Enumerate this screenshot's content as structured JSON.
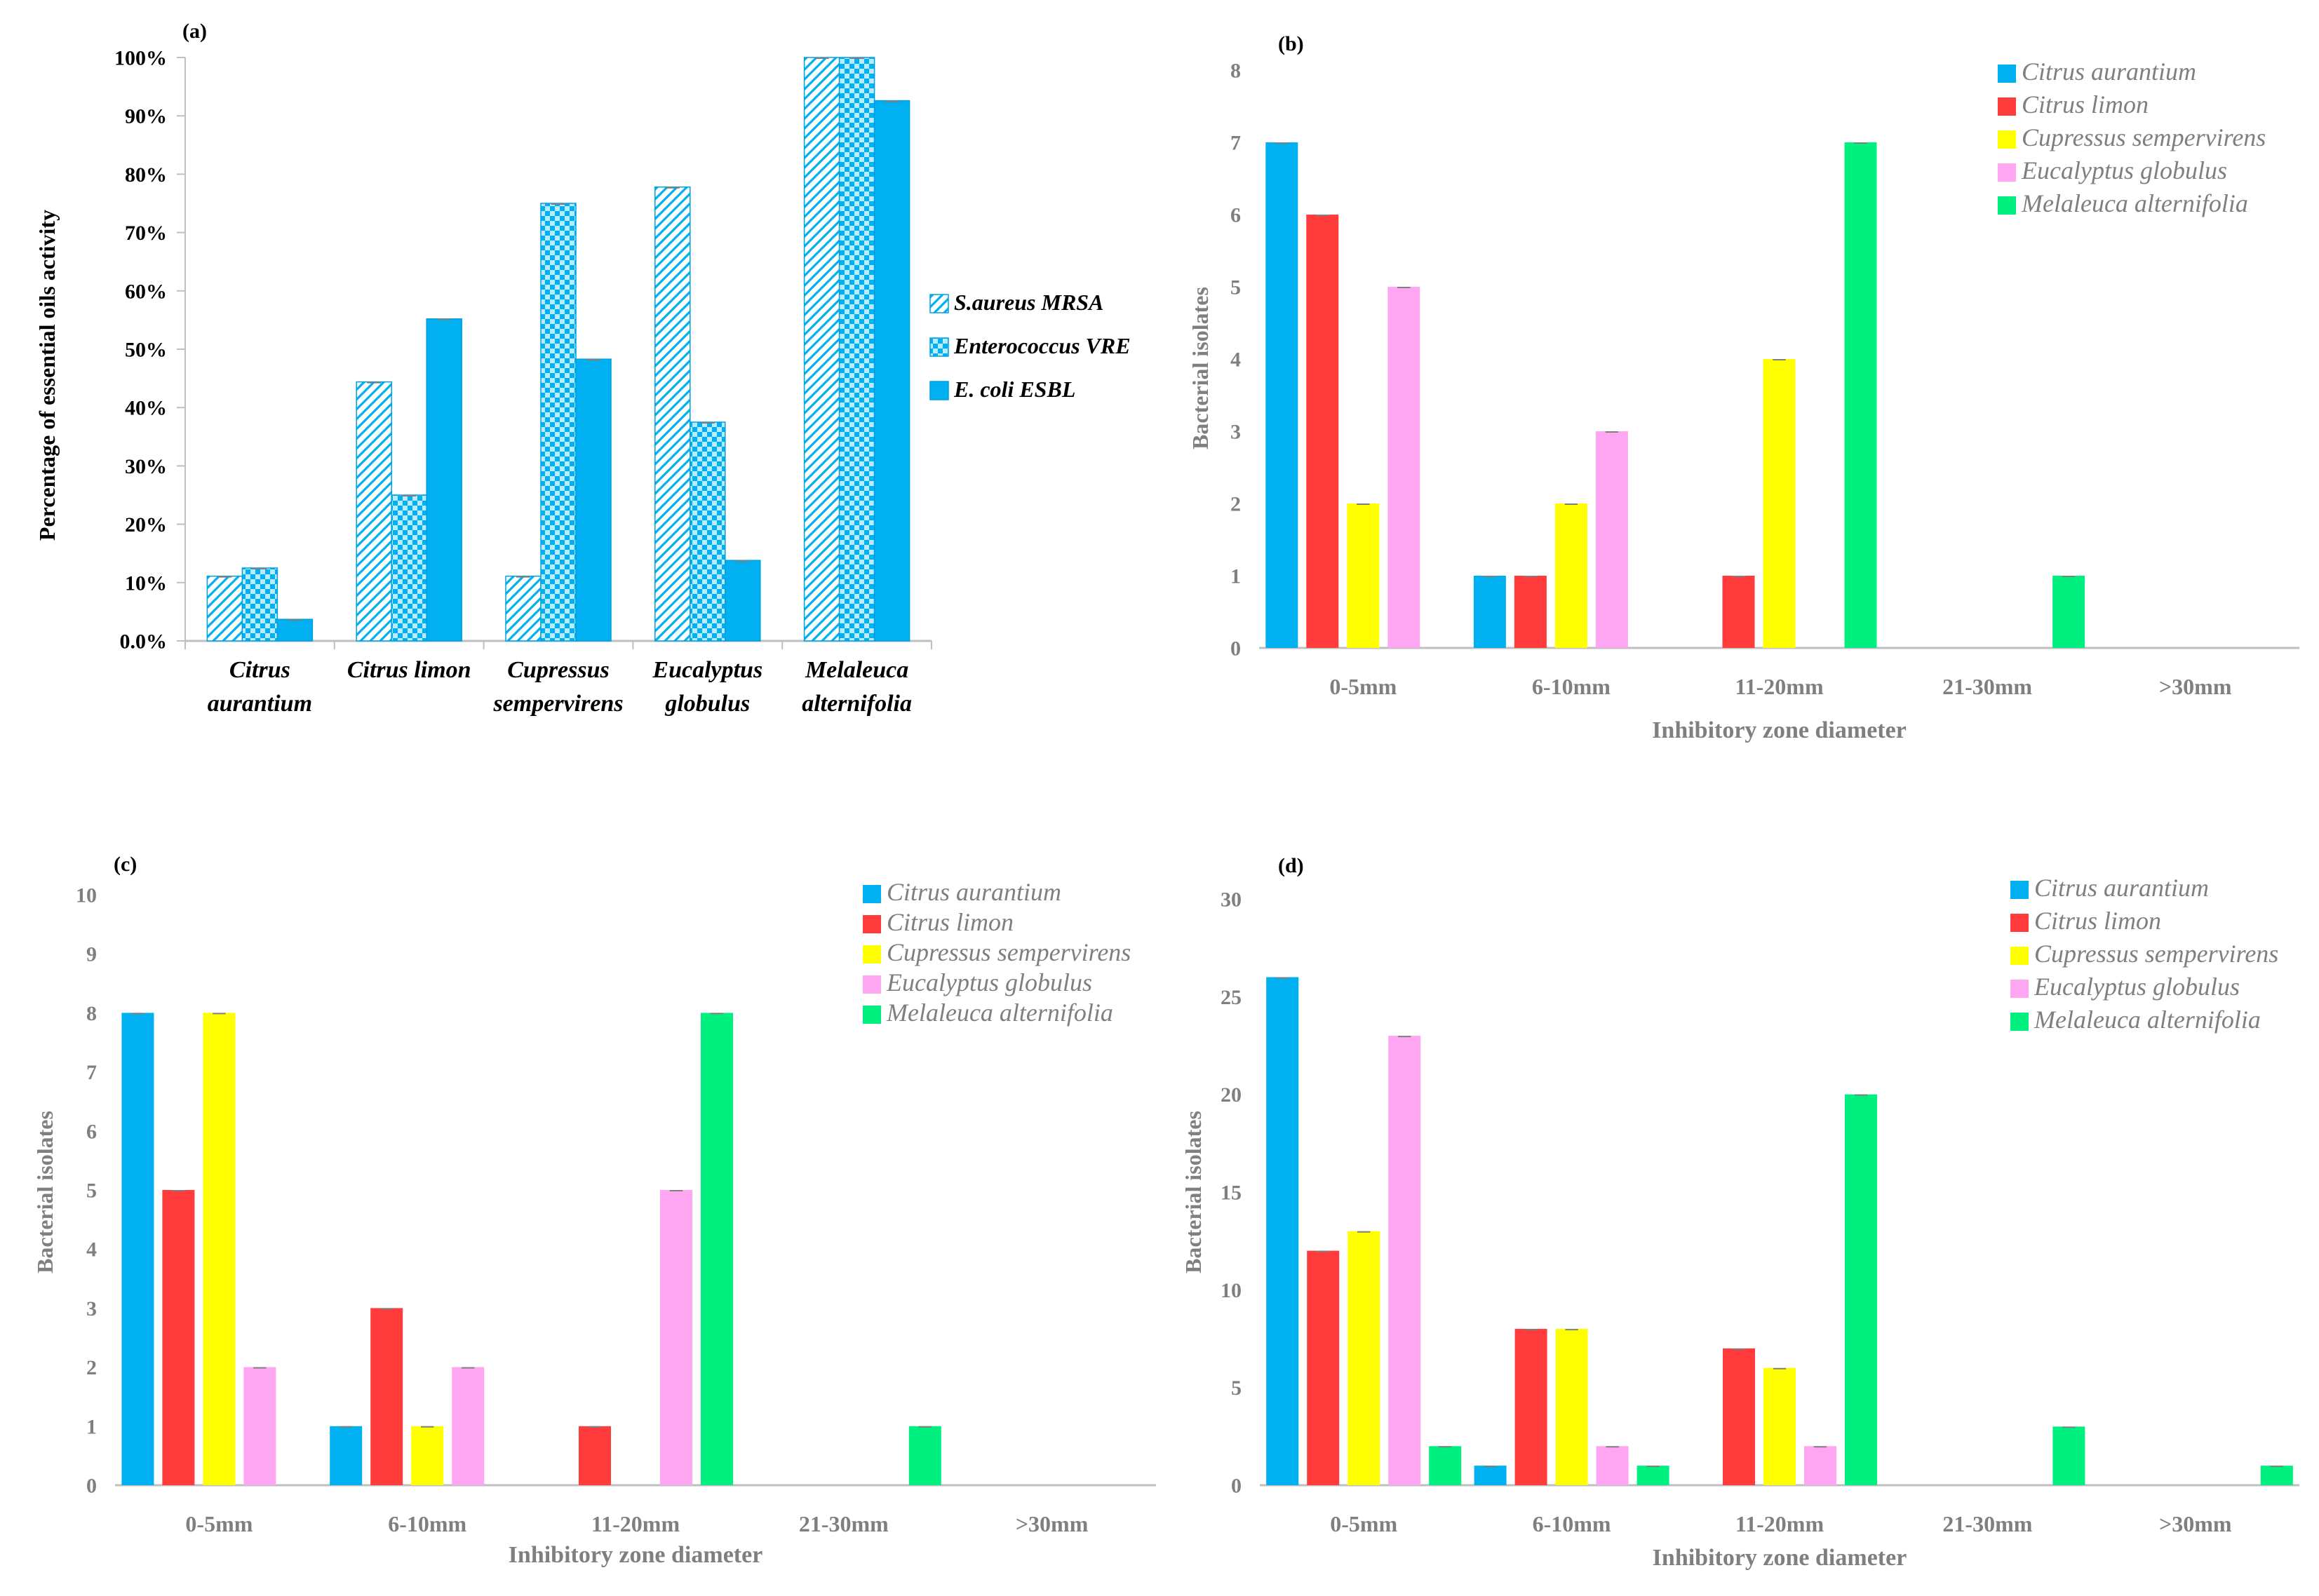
{
  "chart_data": [
    {
      "id": "a",
      "type": "bar",
      "panel_label": "(a)",
      "title": "",
      "xlabel": "",
      "ylabel": "Percentage of essential oils  activity",
      "ylim": [
        0,
        100
      ],
      "yticks": [
        "0.0%",
        "10%",
        "20%",
        "30%",
        "40%",
        "50%",
        "60%",
        "70%",
        "80%",
        "90%",
        "100%"
      ],
      "grid": false,
      "legend_position": "right",
      "categories": [
        [
          "Citrus",
          "aurantium"
        ],
        [
          "Citrus limon"
        ],
        [
          "Cupressus",
          "sempervirens"
        ],
        [
          "Eucalyptus",
          "globulus"
        ],
        [
          "Melaleuca",
          "alternifolia"
        ]
      ],
      "series": [
        {
          "name": "S.aureus MRSA",
          "color": "#00b0f0",
          "fill": "diagonal-hatch",
          "values": [
            11.1,
            44.4,
            11.1,
            77.8,
            100
          ]
        },
        {
          "name": "Enterococcus VRE",
          "color": "#00b0f0",
          "fill": "check-pattern",
          "values": [
            12.5,
            25,
            75,
            37.5,
            100
          ]
        },
        {
          "name": "E. coli ESBL",
          "color": "#00b0f0",
          "fill": "solid",
          "values": [
            3.7,
            55.2,
            48.3,
            13.8,
            92.6
          ]
        }
      ]
    },
    {
      "id": "b",
      "type": "bar",
      "panel_label": "(b)",
      "title": "",
      "xlabel": "Inhibitory  zone diameter",
      "ylabel": "Bacterial isolates",
      "ylim": [
        0,
        8
      ],
      "yticks": [
        "0",
        "1",
        "2",
        "3",
        "4",
        "5",
        "6",
        "7",
        "8"
      ],
      "grid": false,
      "legend_position": "top-right",
      "categories": [
        "0-5mm",
        "6-10mm",
        "11-20mm",
        "21-30mm",
        ">30mm"
      ],
      "series": [
        {
          "name": "Citrus aurantium",
          "color": "#00b0f0",
          "values": [
            7,
            1,
            0,
            0,
            0
          ]
        },
        {
          "name": "Citrus limon",
          "color": "#ff3b3b",
          "values": [
            6,
            1,
            1,
            0,
            0
          ]
        },
        {
          "name": "Cupressus sempervirens",
          "color": "#ffff00",
          "values": [
            2,
            2,
            4,
            0,
            0
          ]
        },
        {
          "name": "Eucalyptus globulus",
          "color": "#ffa6f2",
          "values": [
            5,
            3,
            0,
            0,
            0
          ]
        },
        {
          "name": "Melaleuca alternifolia",
          "color": "#00f080",
          "values": [
            0,
            0,
            7,
            1,
            0
          ]
        }
      ]
    },
    {
      "id": "c",
      "type": "bar",
      "panel_label": "(c)",
      "title": "",
      "xlabel": "Inhibitory  zone diameter",
      "ylabel": "Bacterial isolates",
      "ylim": [
        0,
        10
      ],
      "yticks": [
        "0",
        "1",
        "2",
        "3",
        "4",
        "5",
        "6",
        "7",
        "8",
        "9",
        "10"
      ],
      "grid": false,
      "legend_position": "top-right",
      "categories": [
        "0-5mm",
        "6-10mm",
        "11-20mm",
        "21-30mm",
        ">30mm"
      ],
      "series": [
        {
          "name": "Citrus aurantium",
          "color": "#00b0f0",
          "values": [
            8,
            1,
            0,
            0,
            0
          ]
        },
        {
          "name": "Citrus limon",
          "color": "#ff3b3b",
          "values": [
            5,
            3,
            1,
            0,
            0
          ]
        },
        {
          "name": "Cupressus sempervirens",
          "color": "#ffff00",
          "values": [
            8,
            1,
            0,
            0,
            0
          ]
        },
        {
          "name": "Eucalyptus globulus",
          "color": "#ffa6f2",
          "values": [
            2,
            2,
            5,
            0,
            0
          ]
        },
        {
          "name": "Melaleuca alternifolia",
          "color": "#00f080",
          "values": [
            0,
            0,
            8,
            1,
            0
          ]
        }
      ]
    },
    {
      "id": "d",
      "type": "bar",
      "panel_label": "(d)",
      "title": "",
      "xlabel": "Inhibitory  zone diameter",
      "ylabel": "Bacterial isolates",
      "ylim": [
        0,
        30
      ],
      "yticks": [
        "0",
        "5",
        "10",
        "15",
        "20",
        "25",
        "30"
      ],
      "grid": false,
      "legend_position": "top-right",
      "categories": [
        "0-5mm",
        "6-10mm",
        "11-20mm",
        "21-30mm",
        ">30mm"
      ],
      "series": [
        {
          "name": "Citrus aurantium",
          "color": "#00b0f0",
          "values": [
            26,
            1,
            0,
            0,
            0
          ]
        },
        {
          "name": "Citrus limon",
          "color": "#ff3b3b",
          "values": [
            12,
            8,
            7,
            0,
            0
          ]
        },
        {
          "name": "Cupressus sempervirens",
          "color": "#ffff00",
          "values": [
            13,
            8,
            6,
            0,
            0
          ]
        },
        {
          "name": "Eucalyptus globulus",
          "color": "#ffa6f2",
          "values": [
            23,
            2,
            2,
            0,
            0
          ]
        },
        {
          "name": "Melaleuca alternifolia",
          "color": "#00f080",
          "values": [
            2,
            1,
            20,
            3,
            1
          ]
        }
      ]
    }
  ]
}
